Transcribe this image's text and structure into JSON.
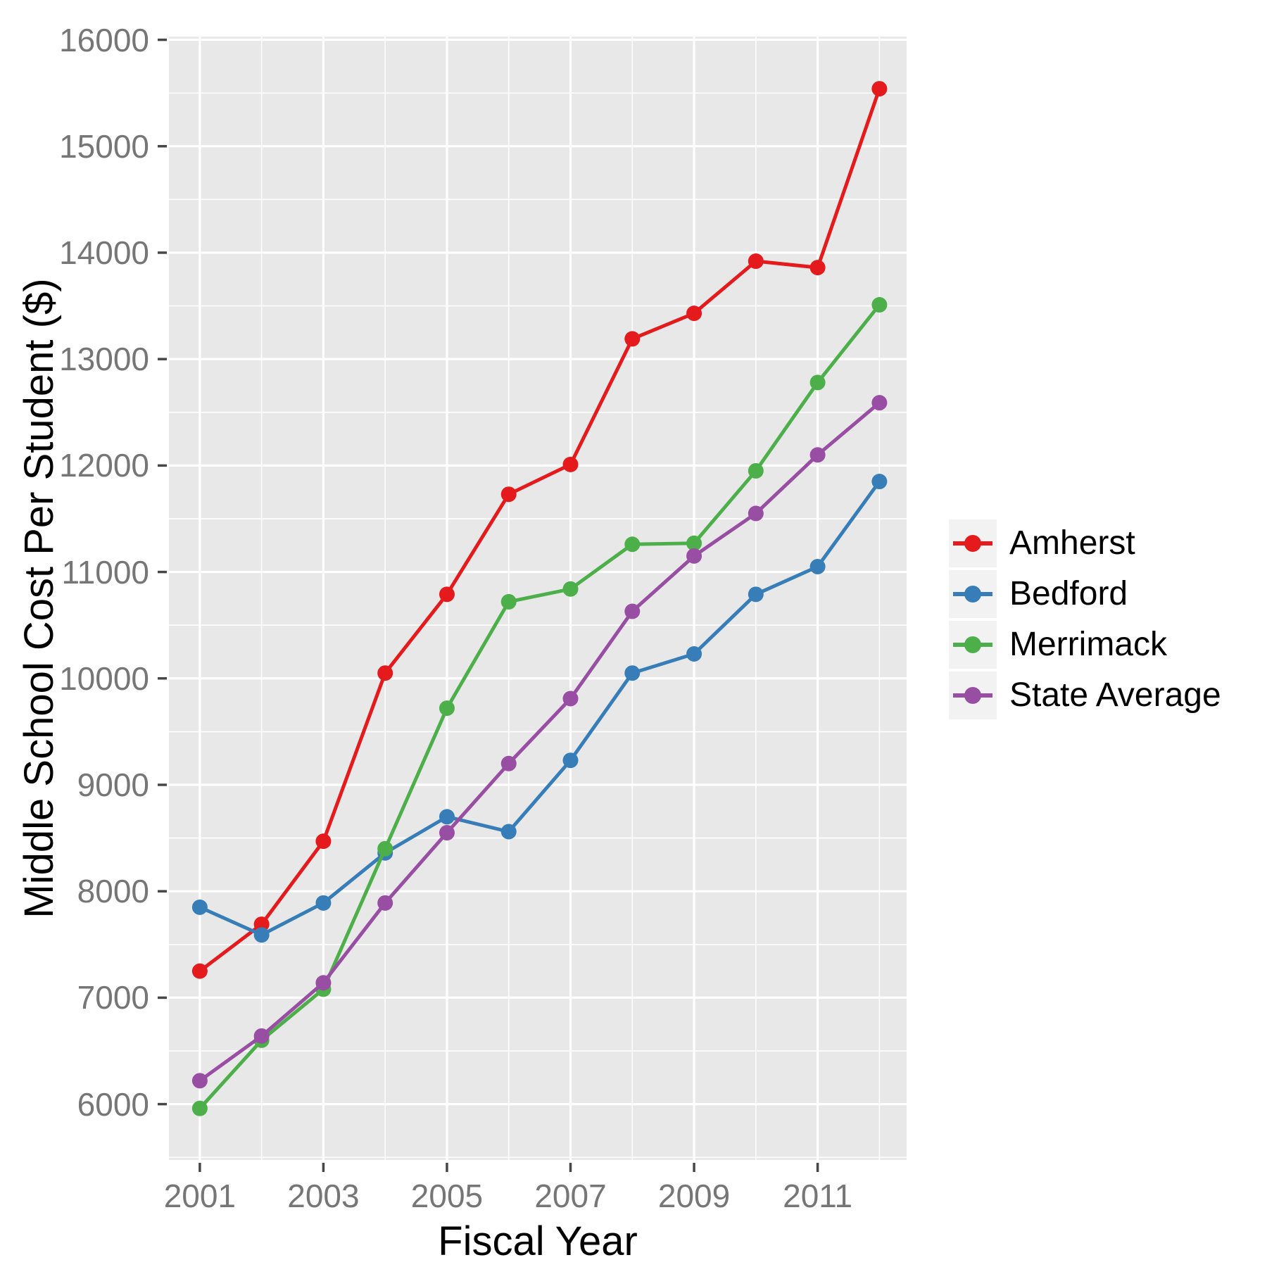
{
  "chart_data": {
    "type": "line",
    "title": "",
    "xlabel": "Fiscal Year",
    "ylabel": "Middle School Cost Per Student ($)",
    "x": [
      2001,
      2002,
      2003,
      2004,
      2005,
      2006,
      2007,
      2008,
      2009,
      2010,
      2011,
      2012
    ],
    "x_ticks": [
      2001,
      2003,
      2005,
      2007,
      2009,
      2011
    ],
    "x_minor_ticks": [
      2002,
      2004,
      2006,
      2008,
      2010,
      2012
    ],
    "y_ticks": [
      6000,
      7000,
      8000,
      9000,
      10000,
      11000,
      12000,
      13000,
      14000,
      15000,
      16000
    ],
    "y_minor_ticks": [
      5500,
      6500,
      7500,
      8500,
      9500,
      10500,
      11500,
      12500,
      13500,
      14500,
      15500
    ],
    "xlim": [
      2000.5,
      2012.44
    ],
    "ylim": [
      5475,
      16030
    ],
    "grid": "white major and minor gridlines on gray panel",
    "legend_position": "right",
    "series": [
      {
        "name": "Amherst",
        "color": "#E41A1C",
        "values": [
          7250,
          7690,
          8470,
          10050,
          10790,
          11730,
          12010,
          13190,
          13430,
          13920,
          13860,
          15540
        ]
      },
      {
        "name": "Bedford",
        "color": "#377EB8",
        "values": [
          7850,
          7590,
          7890,
          8360,
          8700,
          8560,
          9230,
          10050,
          10230,
          10790,
          11050,
          11850
        ]
      },
      {
        "name": "Merrimack",
        "color": "#4DAF4A",
        "values": [
          5960,
          6600,
          7080,
          8400,
          9720,
          10720,
          10840,
          11260,
          11270,
          11950,
          12780,
          13510
        ]
      },
      {
        "name": "State Average",
        "color": "#984EA3",
        "values": [
          6220,
          6640,
          7140,
          7890,
          8550,
          9200,
          9810,
          10630,
          11150,
          11550,
          12100,
          12590
        ]
      }
    ]
  },
  "colors": {
    "page_bg": "#FFFFFF",
    "panel_bg": "#E8E8E8",
    "grid": "#FFFFFF",
    "tick_mark": "#474747",
    "tick_text": "#767676",
    "axis_title": "#000000",
    "legend_key_bg": "#F2F2F2",
    "legend_text": "#000000"
  }
}
